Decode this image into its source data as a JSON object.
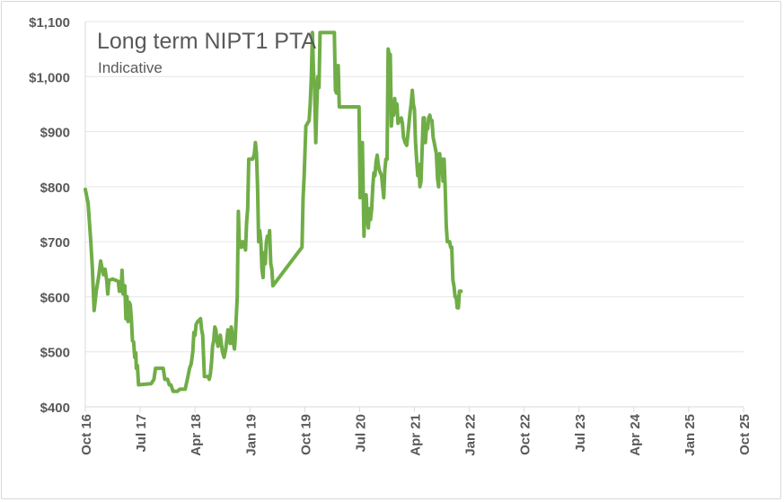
{
  "chart_data": {
    "type": "line",
    "title": "Long term NIPT1 PTA",
    "subtitle": "Indicative",
    "xlabel": "",
    "ylabel": "",
    "ylim": [
      400,
      1100
    ],
    "y_ticks": [
      400,
      500,
      600,
      700,
      800,
      900,
      1000,
      1100
    ],
    "y_tick_labels": [
      "$400",
      "$500",
      "$600",
      "$700",
      "$800",
      "$900",
      "$1,000",
      "$1,100"
    ],
    "x_ticks": [
      "Oct 16",
      "Jul 17",
      "Apr 18",
      "Jan 19",
      "Oct 19",
      "Jul 20",
      "Apr 21",
      "Jan 22",
      "Oct 22",
      "Jul 23",
      "Apr 24",
      "Jan 25",
      "Oct 25"
    ],
    "grid": true,
    "line_color": "#70ad47",
    "series": [
      {
        "name": "Long term NIPT1 PTA",
        "points": [
          [
            0,
            795
          ],
          [
            0.05,
            770
          ],
          [
            0.1,
            700
          ],
          [
            0.13,
            650
          ],
          [
            0.16,
            575
          ],
          [
            0.2,
            610
          ],
          [
            0.24,
            635
          ],
          [
            0.28,
            665
          ],
          [
            0.3,
            655
          ],
          [
            0.33,
            640
          ],
          [
            0.36,
            650
          ],
          [
            0.39,
            630
          ],
          [
            0.41,
            605
          ],
          [
            0.43,
            630
          ],
          [
            0.5,
            632
          ],
          [
            0.55,
            630
          ],
          [
            0.6,
            628
          ],
          [
            0.62,
            610
          ],
          [
            0.65,
            610
          ],
          [
            0.67,
            648
          ],
          [
            0.69,
            605
          ],
          [
            0.72,
            620
          ],
          [
            0.74,
            560
          ],
          [
            0.76,
            600
          ],
          [
            0.78,
            555
          ],
          [
            0.8,
            590
          ],
          [
            0.82,
            585
          ],
          [
            0.84,
            560
          ],
          [
            0.86,
            520
          ],
          [
            0.88,
            518
          ],
          [
            0.9,
            490
          ],
          [
            0.92,
            498
          ],
          [
            0.93,
            470
          ],
          [
            0.95,
            475
          ],
          [
            0.97,
            440
          ],
          [
            1.2,
            442
          ],
          [
            1.25,
            450
          ],
          [
            1.28,
            470
          ],
          [
            1.42,
            470
          ],
          [
            1.45,
            450
          ],
          [
            1.5,
            450
          ],
          [
            1.53,
            440
          ],
          [
            1.56,
            440
          ],
          [
            1.6,
            428
          ],
          [
            1.68,
            428
          ],
          [
            1.72,
            432
          ],
          [
            1.82,
            432
          ],
          [
            1.86,
            450
          ],
          [
            1.9,
            470
          ],
          [
            1.93,
            478
          ],
          [
            1.96,
            500
          ],
          [
            1.98,
            535
          ],
          [
            2.0,
            530
          ],
          [
            2.02,
            550
          ],
          [
            2.05,
            555
          ],
          [
            2.1,
            560
          ],
          [
            2.12,
            540
          ],
          [
            2.14,
            530
          ],
          [
            2.17,
            455
          ],
          [
            2.24,
            455
          ],
          [
            2.26,
            450
          ],
          [
            2.28,
            460
          ],
          [
            2.3,
            480
          ],
          [
            2.32,
            510
          ],
          [
            2.34,
            520
          ],
          [
            2.36,
            545
          ],
          [
            2.38,
            540
          ],
          [
            2.4,
            520
          ],
          [
            2.42,
            510
          ],
          [
            2.44,
            515
          ],
          [
            2.46,
            530
          ],
          [
            2.48,
            515
          ],
          [
            2.5,
            500
          ],
          [
            2.53,
            490
          ],
          [
            2.56,
            505
          ],
          [
            2.6,
            540
          ],
          [
            2.62,
            530
          ],
          [
            2.64,
            515
          ],
          [
            2.66,
            545
          ],
          [
            2.68,
            530
          ],
          [
            2.7,
            515
          ],
          [
            2.72,
            505
          ],
          [
            2.73,
            520
          ],
          [
            2.75,
            560
          ],
          [
            2.77,
            600
          ],
          [
            2.79,
            755
          ],
          [
            2.81,
            690
          ],
          [
            2.83,
            700
          ],
          [
            2.85,
            690
          ],
          [
            2.87,
            700
          ],
          [
            2.9,
            695
          ],
          [
            2.92,
            685
          ],
          [
            2.94,
            735
          ],
          [
            2.96,
            760
          ],
          [
            2.98,
            850
          ],
          [
            3.05,
            850
          ],
          [
            3.08,
            858
          ],
          [
            3.1,
            880
          ],
          [
            3.12,
            860
          ],
          [
            3.14,
            800
          ],
          [
            3.16,
            700
          ],
          [
            3.18,
            720
          ],
          [
            3.2,
            700
          ],
          [
            3.22,
            650
          ],
          [
            3.24,
            635
          ],
          [
            3.26,
            680
          ],
          [
            3.28,
            660
          ],
          [
            3.3,
            700
          ],
          [
            3.32,
            710
          ],
          [
            3.34,
            700
          ],
          [
            3.36,
            720
          ],
          [
            3.38,
            660
          ],
          [
            3.4,
            650
          ],
          [
            3.42,
            620
          ],
          [
            3.95,
            690
          ],
          [
            3.97,
            780
          ],
          [
            3.99,
            820
          ],
          [
            4.02,
            910
          ],
          [
            4.05,
            915
          ],
          [
            4.08,
            920
          ],
          [
            4.1,
            950
          ],
          [
            4.12,
            1000
          ],
          [
            4.14,
            1080
          ],
          [
            4.16,
            1010
          ],
          [
            4.18,
            980
          ],
          [
            4.2,
            880
          ],
          [
            4.22,
            950
          ],
          [
            4.24,
            1000
          ],
          [
            4.26,
            980
          ],
          [
            4.28,
            1080
          ],
          [
            4.54,
            1080
          ],
          [
            4.56,
            975
          ],
          [
            4.58,
            970
          ],
          [
            4.61,
            1020
          ],
          [
            4.63,
            945
          ],
          [
            4.99,
            945
          ],
          [
            5.01,
            780
          ],
          [
            5.03,
            790
          ],
          [
            5.05,
            880
          ],
          [
            5.08,
            710
          ],
          [
            5.1,
            780
          ],
          [
            5.12,
            785
          ],
          [
            5.14,
            740
          ],
          [
            5.16,
            725
          ],
          [
            5.18,
            760
          ],
          [
            5.2,
            740
          ],
          [
            5.22,
            760
          ],
          [
            5.24,
            800
          ],
          [
            5.26,
            825
          ],
          [
            5.28,
            820
          ],
          [
            5.3,
            845
          ],
          [
            5.32,
            857
          ],
          [
            5.34,
            840
          ],
          [
            5.36,
            830
          ],
          [
            5.38,
            825
          ],
          [
            5.4,
            820
          ],
          [
            5.42,
            800
          ],
          [
            5.44,
            780
          ],
          [
            5.46,
            830
          ],
          [
            5.48,
            850
          ],
          [
            5.5,
            850
          ],
          [
            5.52,
            1050
          ],
          [
            5.54,
            1040
          ],
          [
            5.56,
            1040
          ],
          [
            5.58,
            910
          ],
          [
            5.6,
            940
          ],
          [
            5.62,
            930
          ],
          [
            5.64,
            960
          ],
          [
            5.66,
            935
          ],
          [
            5.68,
            950
          ],
          [
            5.7,
            915
          ],
          [
            5.73,
            920
          ],
          [
            5.76,
            925
          ],
          [
            5.78,
            915
          ],
          [
            5.8,
            890
          ],
          [
            5.83,
            880
          ],
          [
            5.86,
            875
          ],
          [
            5.89,
            905
          ],
          [
            5.92,
            935
          ],
          [
            5.94,
            950
          ],
          [
            5.96,
            975
          ],
          [
            5.98,
            950
          ],
          [
            6.0,
            940
          ],
          [
            6.02,
            880
          ],
          [
            6.04,
            850
          ],
          [
            6.06,
            820
          ],
          [
            6.08,
            840
          ],
          [
            6.1,
            800
          ],
          [
            6.12,
            810
          ],
          [
            6.14,
            870
          ],
          [
            6.16,
            925
          ],
          [
            6.18,
            925
          ],
          [
            6.2,
            880
          ],
          [
            6.22,
            910
          ],
          [
            6.24,
            905
          ],
          [
            6.26,
            925
          ],
          [
            6.28,
            930
          ],
          [
            6.3,
            920
          ],
          [
            6.32,
            920
          ],
          [
            6.34,
            890
          ],
          [
            6.36,
            880
          ],
          [
            6.38,
            870
          ],
          [
            6.4,
            860
          ],
          [
            6.42,
            815
          ],
          [
            6.44,
            800
          ],
          [
            6.46,
            860
          ],
          [
            6.48,
            830
          ],
          [
            6.5,
            850
          ],
          [
            6.52,
            810
          ],
          [
            6.54,
            850
          ],
          [
            6.56,
            800
          ],
          [
            6.58,
            730
          ],
          [
            6.6,
            700
          ],
          [
            6.64,
            700
          ],
          [
            6.66,
            690
          ],
          [
            6.68,
            690
          ],
          [
            6.7,
            630
          ],
          [
            6.72,
            620
          ],
          [
            6.74,
            600
          ],
          [
            6.76,
            600
          ],
          [
            6.78,
            580
          ],
          [
            6.8,
            580
          ],
          [
            6.82,
            610
          ],
          [
            6.85,
            610
          ]
        ]
      }
    ]
  }
}
